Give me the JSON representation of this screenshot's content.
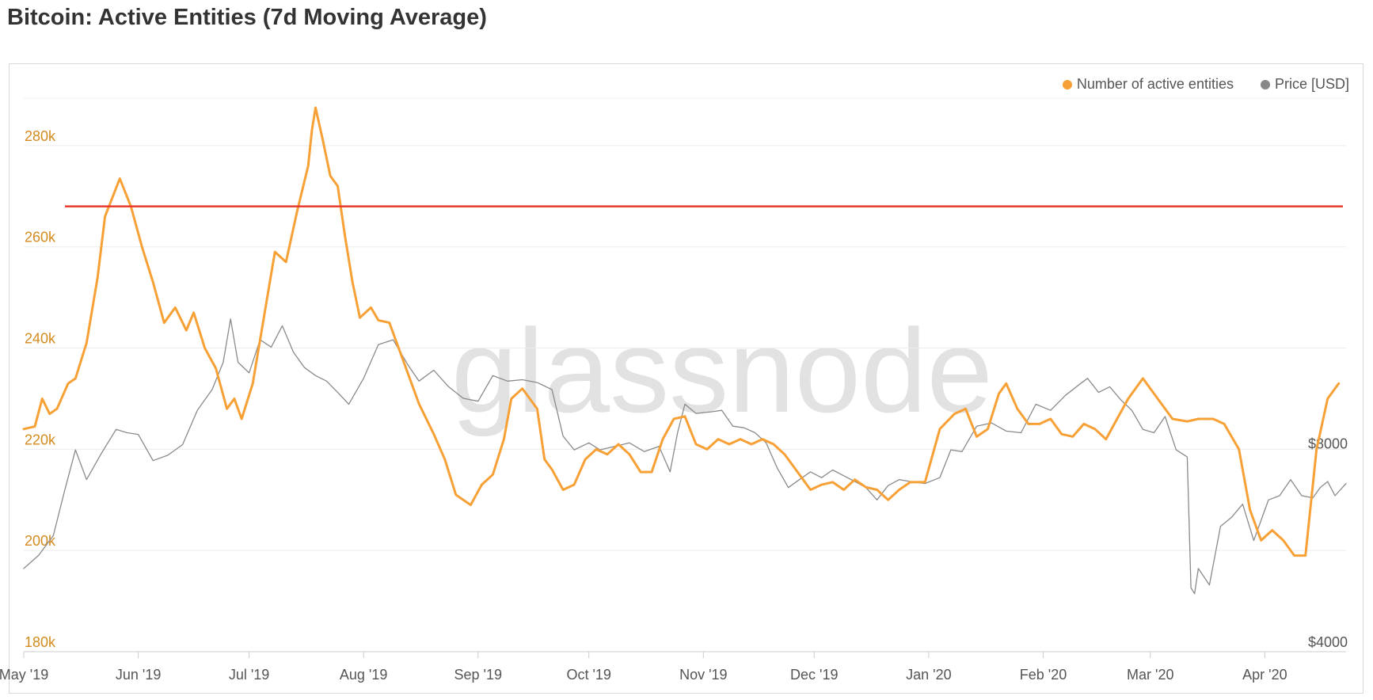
{
  "page": {
    "title": "Bitcoin: Active Entities (7d Moving Average)",
    "watermark": "glassnode"
  },
  "legend": [
    {
      "label": "Number of active entities",
      "color": "#f7a035"
    },
    {
      "label": "Price [USD]",
      "color": "#888888"
    }
  ],
  "chart_data": {
    "type": "line",
    "title": "Bitcoin: Active Entities (7d Moving Average)",
    "xlabel": "",
    "ylabel": "",
    "x_range": [
      "2019-05-01",
      "2020-04-23"
    ],
    "x_ticks": [
      {
        "date": "2019-05-01",
        "label": "May '19"
      },
      {
        "date": "2019-06-01",
        "label": "Jun '19"
      },
      {
        "date": "2019-07-01",
        "label": "Jul '19"
      },
      {
        "date": "2019-08-01",
        "label": "Aug '19"
      },
      {
        "date": "2019-09-01",
        "label": "Sep '19"
      },
      {
        "date": "2019-10-01",
        "label": "Oct '19"
      },
      {
        "date": "2019-11-01",
        "label": "Nov '19"
      },
      {
        "date": "2019-12-01",
        "label": "Dec '19"
      },
      {
        "date": "2020-01-01",
        "label": "Jan '20"
      },
      {
        "date": "2020-02-01",
        "label": "Feb '20"
      },
      {
        "date": "2020-03-01",
        "label": "Mar '20"
      },
      {
        "date": "2020-04-01",
        "label": "Apr '20"
      }
    ],
    "y_left": {
      "min": 180000,
      "max": 290000,
      "ticks": [
        180000,
        200000,
        220000,
        240000,
        260000,
        280000
      ],
      "tick_labels": [
        "180k",
        "200k",
        "220k",
        "240k",
        "260k",
        "280k"
      ],
      "color": "#d38b1e"
    },
    "y_right": {
      "scale": "log",
      "min": 4000,
      "max": 28000,
      "ticks": [
        4000,
        8000
      ],
      "tick_labels": [
        "$4000",
        "$8000"
      ]
    },
    "threshold_line": {
      "value": 268000,
      "color": "#e8382d"
    },
    "grid": true,
    "legend_position": "top-right",
    "series": [
      {
        "name": "Number of active entities",
        "axis": "left",
        "color": "#f7a035",
        "points": [
          [
            "2019-05-01",
            224000
          ],
          [
            "2019-05-04",
            224500
          ],
          [
            "2019-05-06",
            230000
          ],
          [
            "2019-05-08",
            227000
          ],
          [
            "2019-05-10",
            228000
          ],
          [
            "2019-05-13",
            233000
          ],
          [
            "2019-05-15",
            234000
          ],
          [
            "2019-05-18",
            241000
          ],
          [
            "2019-05-21",
            254000
          ],
          [
            "2019-05-23",
            266000
          ],
          [
            "2019-05-27",
            273500
          ],
          [
            "2019-05-30",
            268000
          ],
          [
            "2019-06-02",
            260000
          ],
          [
            "2019-06-05",
            253000
          ],
          [
            "2019-06-08",
            245000
          ],
          [
            "2019-06-11",
            248000
          ],
          [
            "2019-06-14",
            243500
          ],
          [
            "2019-06-16",
            247000
          ],
          [
            "2019-06-19",
            240000
          ],
          [
            "2019-06-22",
            236000
          ],
          [
            "2019-06-25",
            228000
          ],
          [
            "2019-06-27",
            230000
          ],
          [
            "2019-06-29",
            226000
          ],
          [
            "2019-07-02",
            233000
          ],
          [
            "2019-07-05",
            246000
          ],
          [
            "2019-07-08",
            259000
          ],
          [
            "2019-07-11",
            257000
          ],
          [
            "2019-07-14",
            267000
          ],
          [
            "2019-07-17",
            276000
          ],
          [
            "2019-07-18",
            283000
          ],
          [
            "2019-07-19",
            287500
          ],
          [
            "2019-07-21",
            281000
          ],
          [
            "2019-07-23",
            274000
          ],
          [
            "2019-07-25",
            272000
          ],
          [
            "2019-07-27",
            262000
          ],
          [
            "2019-07-29",
            253000
          ],
          [
            "2019-07-31",
            246000
          ],
          [
            "2019-08-03",
            248000
          ],
          [
            "2019-08-05",
            245500
          ],
          [
            "2019-08-08",
            245000
          ],
          [
            "2019-08-11",
            239000
          ],
          [
            "2019-08-14",
            233000
          ],
          [
            "2019-08-16",
            229000
          ],
          [
            "2019-08-20",
            223000
          ],
          [
            "2019-08-23",
            218000
          ],
          [
            "2019-08-26",
            211000
          ],
          [
            "2019-08-30",
            209000
          ],
          [
            "2019-09-02",
            213000
          ],
          [
            "2019-09-05",
            215000
          ],
          [
            "2019-09-08",
            222000
          ],
          [
            "2019-09-10",
            230000
          ],
          [
            "2019-09-13",
            232000
          ],
          [
            "2019-09-17",
            228000
          ],
          [
            "2019-09-19",
            218000
          ],
          [
            "2019-09-21",
            216000
          ],
          [
            "2019-09-24",
            212000
          ],
          [
            "2019-09-27",
            213000
          ],
          [
            "2019-09-30",
            218000
          ],
          [
            "2019-10-03",
            220000
          ],
          [
            "2019-10-06",
            219000
          ],
          [
            "2019-10-09",
            221000
          ],
          [
            "2019-10-12",
            219000
          ],
          [
            "2019-10-15",
            215500
          ],
          [
            "2019-10-18",
            215500
          ],
          [
            "2019-10-21",
            222000
          ],
          [
            "2019-10-24",
            226000
          ],
          [
            "2019-10-27",
            226500
          ],
          [
            "2019-10-30",
            221000
          ],
          [
            "2019-11-02",
            220000
          ],
          [
            "2019-11-05",
            222000
          ],
          [
            "2019-11-08",
            221000
          ],
          [
            "2019-11-11",
            222000
          ],
          [
            "2019-11-14",
            221000
          ],
          [
            "2019-11-17",
            222000
          ],
          [
            "2019-11-20",
            221000
          ],
          [
            "2019-11-23",
            219000
          ],
          [
            "2019-11-26",
            216000
          ],
          [
            "2019-11-30",
            212000
          ],
          [
            "2019-12-03",
            213000
          ],
          [
            "2019-12-06",
            213500
          ],
          [
            "2019-12-09",
            212000
          ],
          [
            "2019-12-12",
            214000
          ],
          [
            "2019-12-15",
            212500
          ],
          [
            "2019-12-18",
            212000
          ],
          [
            "2019-12-21",
            210000
          ],
          [
            "2019-12-24",
            212000
          ],
          [
            "2019-12-27",
            213500
          ],
          [
            "2019-12-31",
            213500
          ],
          [
            "2020-01-04",
            224000
          ],
          [
            "2020-01-08",
            227000
          ],
          [
            "2020-01-11",
            228000
          ],
          [
            "2020-01-14",
            222500
          ],
          [
            "2020-01-17",
            224000
          ],
          [
            "2020-01-20",
            231000
          ],
          [
            "2020-01-22",
            233000
          ],
          [
            "2020-01-25",
            228000
          ],
          [
            "2020-01-28",
            225000
          ],
          [
            "2020-01-31",
            225000
          ],
          [
            "2020-02-03",
            226000
          ],
          [
            "2020-02-06",
            223000
          ],
          [
            "2020-02-09",
            222500
          ],
          [
            "2020-02-12",
            225000
          ],
          [
            "2020-02-15",
            224000
          ],
          [
            "2020-02-18",
            222000
          ],
          [
            "2020-02-21",
            226000
          ],
          [
            "2020-02-24",
            230000
          ],
          [
            "2020-02-28",
            234000
          ],
          [
            "2020-03-03",
            230000
          ],
          [
            "2020-03-07",
            226000
          ],
          [
            "2020-03-11",
            225500
          ],
          [
            "2020-03-14",
            226000
          ],
          [
            "2020-03-18",
            226000
          ],
          [
            "2020-03-21",
            225000
          ],
          [
            "2020-03-25",
            220000
          ],
          [
            "2020-03-28",
            208000
          ],
          [
            "2020-03-31",
            202000
          ],
          [
            "2020-04-03",
            204000
          ],
          [
            "2020-04-06",
            202000
          ],
          [
            "2020-04-09",
            199000
          ],
          [
            "2020-04-12",
            199000
          ],
          [
            "2020-04-15",
            220000
          ],
          [
            "2020-04-18",
            230000
          ],
          [
            "2020-04-21",
            233000
          ]
        ]
      },
      {
        "name": "Price [USD]",
        "axis": "right",
        "color": "#8a8a8a",
        "points": [
          [
            "2019-05-01",
            5350
          ],
          [
            "2019-05-05",
            5600
          ],
          [
            "2019-05-09",
            6000
          ],
          [
            "2019-05-12",
            7000
          ],
          [
            "2019-05-15",
            8100
          ],
          [
            "2019-05-18",
            7300
          ],
          [
            "2019-05-22",
            8000
          ],
          [
            "2019-05-26",
            8700
          ],
          [
            "2019-05-29",
            8600
          ],
          [
            "2019-06-01",
            8550
          ],
          [
            "2019-06-05",
            7800
          ],
          [
            "2019-06-09",
            7950
          ],
          [
            "2019-06-13",
            8250
          ],
          [
            "2019-06-17",
            9300
          ],
          [
            "2019-06-21",
            10000
          ],
          [
            "2019-06-24",
            11000
          ],
          [
            "2019-06-26",
            12800
          ],
          [
            "2019-06-28",
            11000
          ],
          [
            "2019-07-01",
            10600
          ],
          [
            "2019-07-04",
            11900
          ],
          [
            "2019-07-07",
            11600
          ],
          [
            "2019-07-10",
            12500
          ],
          [
            "2019-07-13",
            11400
          ],
          [
            "2019-07-16",
            10800
          ],
          [
            "2019-07-19",
            10500
          ],
          [
            "2019-07-22",
            10300
          ],
          [
            "2019-07-25",
            9900
          ],
          [
            "2019-07-28",
            9500
          ],
          [
            "2019-08-01",
            10400
          ],
          [
            "2019-08-05",
            11700
          ],
          [
            "2019-08-09",
            11900
          ],
          [
            "2019-08-13",
            10900
          ],
          [
            "2019-08-16",
            10300
          ],
          [
            "2019-08-20",
            10700
          ],
          [
            "2019-08-24",
            10100
          ],
          [
            "2019-08-28",
            9700
          ],
          [
            "2019-09-01",
            9600
          ],
          [
            "2019-09-05",
            10500
          ],
          [
            "2019-09-09",
            10300
          ],
          [
            "2019-09-13",
            10350
          ],
          [
            "2019-09-17",
            10250
          ],
          [
            "2019-09-21",
            10000
          ],
          [
            "2019-09-24",
            8500
          ],
          [
            "2019-09-27",
            8100
          ],
          [
            "2019-10-01",
            8300
          ],
          [
            "2019-10-04",
            8100
          ],
          [
            "2019-10-08",
            8200
          ],
          [
            "2019-10-12",
            8300
          ],
          [
            "2019-10-16",
            8050
          ],
          [
            "2019-10-20",
            8200
          ],
          [
            "2019-10-23",
            7500
          ],
          [
            "2019-10-25",
            8600
          ],
          [
            "2019-10-27",
            9500
          ],
          [
            "2019-10-30",
            9200
          ],
          [
            "2019-11-03",
            9250
          ],
          [
            "2019-11-06",
            9300
          ],
          [
            "2019-11-09",
            8800
          ],
          [
            "2019-11-12",
            8750
          ],
          [
            "2019-11-15",
            8600
          ],
          [
            "2019-11-18",
            8300
          ],
          [
            "2019-11-21",
            7600
          ],
          [
            "2019-11-24",
            7100
          ],
          [
            "2019-11-27",
            7300
          ],
          [
            "2019-11-30",
            7500
          ],
          [
            "2019-12-03",
            7350
          ],
          [
            "2019-12-06",
            7550
          ],
          [
            "2019-12-09",
            7400
          ],
          [
            "2019-12-12",
            7250
          ],
          [
            "2019-12-15",
            7100
          ],
          [
            "2019-12-18",
            6800
          ],
          [
            "2019-12-21",
            7150
          ],
          [
            "2019-12-24",
            7300
          ],
          [
            "2019-12-27",
            7250
          ],
          [
            "2019-12-31",
            7200
          ],
          [
            "2020-01-04",
            7350
          ],
          [
            "2020-01-07",
            8100
          ],
          [
            "2020-01-10",
            8050
          ],
          [
            "2020-01-14",
            8800
          ],
          [
            "2020-01-18",
            8900
          ],
          [
            "2020-01-22",
            8650
          ],
          [
            "2020-01-26",
            8600
          ],
          [
            "2020-01-30",
            9500
          ],
          [
            "2020-02-03",
            9300
          ],
          [
            "2020-02-07",
            9800
          ],
          [
            "2020-02-11",
            10200
          ],
          [
            "2020-02-13",
            10400
          ],
          [
            "2020-02-16",
            9900
          ],
          [
            "2020-02-19",
            10100
          ],
          [
            "2020-02-22",
            9650
          ],
          [
            "2020-02-25",
            9300
          ],
          [
            "2020-02-28",
            8700
          ],
          [
            "2020-03-02",
            8600
          ],
          [
            "2020-03-05",
            9100
          ],
          [
            "2020-03-08",
            8100
          ],
          [
            "2020-03-11",
            7900
          ],
          [
            "2020-03-12",
            5000
          ],
          [
            "2020-03-13",
            4900
          ],
          [
            "2020-03-14",
            5350
          ],
          [
            "2020-03-17",
            5050
          ],
          [
            "2020-03-20",
            6200
          ],
          [
            "2020-03-23",
            6400
          ],
          [
            "2020-03-26",
            6700
          ],
          [
            "2020-03-29",
            5900
          ],
          [
            "2020-04-02",
            6800
          ],
          [
            "2020-04-05",
            6900
          ],
          [
            "2020-04-08",
            7300
          ],
          [
            "2020-04-11",
            6900
          ],
          [
            "2020-04-14",
            6850
          ],
          [
            "2020-04-16",
            7100
          ],
          [
            "2020-04-18",
            7250
          ],
          [
            "2020-04-20",
            6900
          ],
          [
            "2020-04-23",
            7200
          ]
        ]
      }
    ]
  }
}
